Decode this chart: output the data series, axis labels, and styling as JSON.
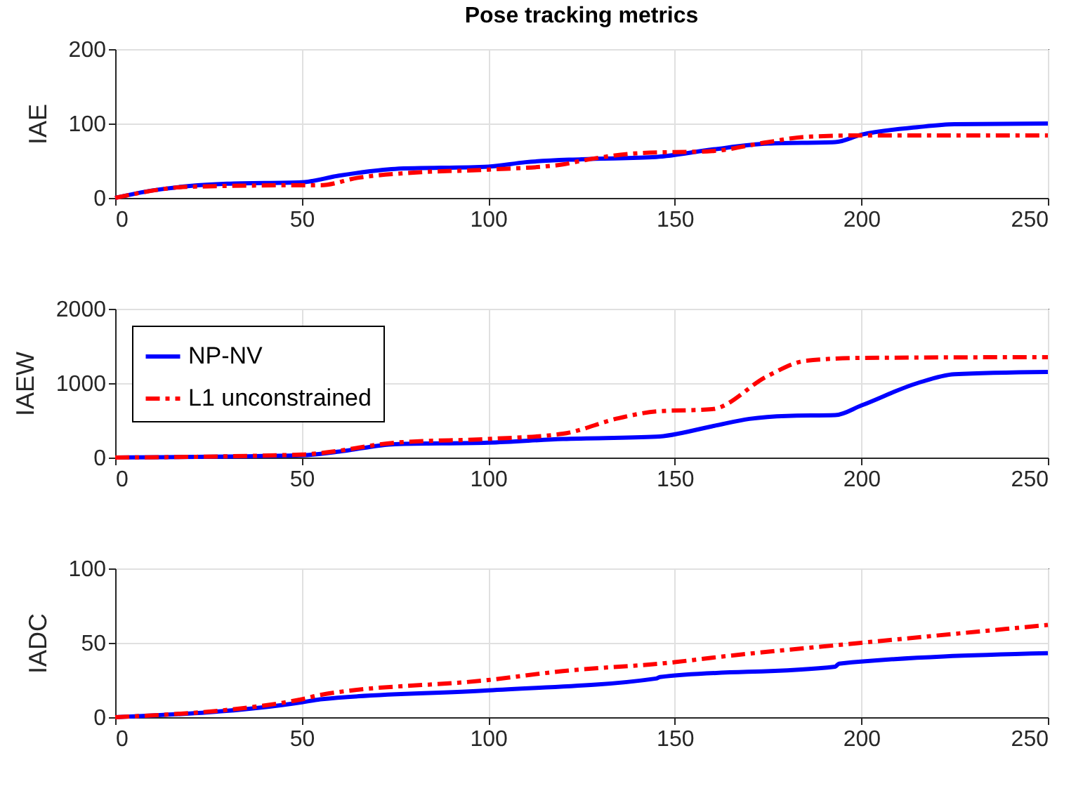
{
  "chart_data": [
    {
      "type": "line",
      "title": "Pose tracking metrics",
      "ylabel": "IAE",
      "xlim": [
        0,
        250
      ],
      "xticks": [
        0,
        50,
        100,
        150,
        200,
        250
      ],
      "ylim": [
        0,
        200
      ],
      "yticks": [
        0,
        100,
        200
      ],
      "grid": true,
      "legend": false,
      "series": [
        {
          "color": "#0000ff",
          "line_style": "solid",
          "x": [
            0,
            10,
            20,
            30,
            50,
            60,
            75,
            100,
            110,
            125,
            145,
            160,
            175,
            193,
            200,
            215,
            225,
            250
          ],
          "values": [
            0,
            10,
            16,
            19,
            21,
            30,
            39,
            42,
            48,
            52,
            55,
            65,
            73,
            75,
            85,
            95,
            99,
            100
          ]
        },
        {
          "color": "#ff0000",
          "line_style": "dashed",
          "x": [
            0,
            20,
            50,
            55,
            65,
            80,
            100,
            120,
            125,
            140,
            160,
            175,
            185,
            200,
            250
          ],
          "values": [
            0,
            15,
            17,
            17,
            27,
            34,
            38,
            45,
            50,
            60,
            63,
            75,
            82,
            84,
            84
          ]
        }
      ]
    },
    {
      "type": "line",
      "ylabel": "IAEW",
      "xlim": [
        0,
        250
      ],
      "xticks": [
        0,
        50,
        100,
        150,
        200,
        250
      ],
      "ylim": [
        0,
        2000
      ],
      "yticks": [
        0,
        1000,
        2000
      ],
      "grid": true,
      "legend": "top left",
      "series": [
        {
          "name": "NP-NV",
          "color": "#0000ff",
          "line_style": "solid",
          "x": [
            0,
            50,
            60,
            75,
            100,
            120,
            145,
            160,
            170,
            180,
            193,
            200,
            215,
            225,
            250
          ],
          "values": [
            0,
            30,
            80,
            180,
            200,
            250,
            280,
            420,
            520,
            560,
            570,
            700,
            1000,
            1120,
            1150
          ]
        },
        {
          "name": "L1 unconstrained",
          "color": "#ff0000",
          "line_style": "dashed",
          "x": [
            0,
            50,
            55,
            75,
            100,
            120,
            135,
            145,
            160,
            175,
            185,
            200,
            250
          ],
          "values": [
            0,
            40,
            60,
            200,
            250,
            320,
            530,
            620,
            650,
            1100,
            1300,
            1340,
            1350
          ]
        }
      ]
    },
    {
      "type": "line",
      "ylabel": "IADC",
      "xlim": [
        0,
        250
      ],
      "xticks": [
        0,
        50,
        100,
        150,
        200,
        250
      ],
      "ylim": [
        0,
        100
      ],
      "yticks": [
        0,
        50,
        100
      ],
      "grid": true,
      "legend": false,
      "series": [
        {
          "color": "#0000ff",
          "line_style": "solid",
          "x": [
            0,
            50,
            55,
            100,
            145,
            146,
            193,
            194,
            250
          ],
          "values": [
            0,
            10,
            12,
            18,
            26,
            27,
            34,
            36,
            43
          ]
        },
        {
          "color": "#ff0000",
          "line_style": "dashed",
          "x": [
            0,
            50,
            55,
            100,
            120,
            150,
            160,
            200,
            250
          ],
          "values": [
            0,
            12,
            15,
            25,
            31,
            37,
            40,
            50,
            62
          ]
        }
      ]
    }
  ]
}
